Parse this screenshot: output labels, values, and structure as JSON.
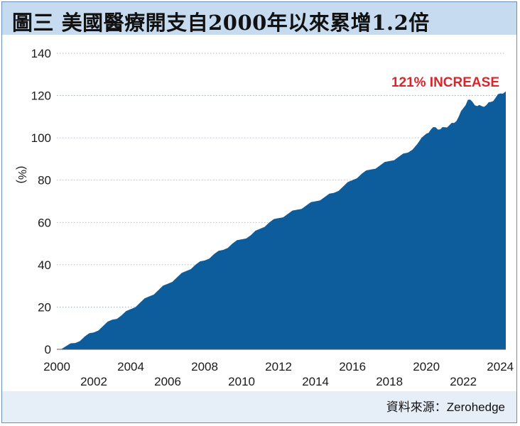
{
  "title": "圖三  美國醫療開支自2000年以來累增1.2倍",
  "source": "資料來源：Zerohedge",
  "colors": {
    "fill": "#0d5c9c",
    "title_bg": "#c6dbf0",
    "annotation": "#d8262d"
  },
  "chart_data": {
    "type": "area",
    "ylabel": "(%)",
    "ylim": [
      0,
      140
    ],
    "yticks": [
      "0",
      "20",
      "40",
      "60",
      "80",
      "100",
      "120",
      "140"
    ],
    "xlim": [
      2000,
      2024.3
    ],
    "xticks": [
      "2000",
      "2002",
      "2004",
      "2006",
      "2008",
      "2010",
      "2012",
      "2014",
      "2016",
      "2018",
      "2020",
      "2022",
      "2024"
    ],
    "annotation": "121% INCREASE",
    "grid": "horizontal dotted",
    "x": [
      2000.0,
      2000.5,
      2001.0,
      2001.5,
      2002.0,
      2002.5,
      2003.0,
      2003.5,
      2004.0,
      2004.5,
      2005.0,
      2005.5,
      2006.0,
      2006.5,
      2007.0,
      2007.5,
      2008.0,
      2008.5,
      2009.0,
      2009.5,
      2010.0,
      2010.5,
      2011.0,
      2011.5,
      2012.0,
      2012.5,
      2013.0,
      2013.5,
      2014.0,
      2014.5,
      2015.0,
      2015.5,
      2016.0,
      2016.5,
      2017.0,
      2017.5,
      2018.0,
      2018.5,
      2019.0,
      2019.5,
      2020.0,
      2020.25,
      2020.5,
      2020.75,
      2021.0,
      2021.25,
      2021.5,
      2021.75,
      2022.0,
      2022.25,
      2022.5,
      2022.75,
      2023.0,
      2023.25,
      2023.5,
      2023.75,
      2024.0,
      2024.3
    ],
    "values": [
      0,
      1.5,
      3,
      6,
      8,
      11,
      14,
      16,
      19,
      22,
      25,
      28,
      31,
      34,
      37,
      40,
      42,
      45,
      47,
      50,
      52,
      54,
      57,
      60,
      62,
      64,
      66,
      68,
      70,
      72,
      74,
      77,
      80,
      83,
      85,
      87,
      89,
      91,
      93,
      97,
      102,
      104,
      105,
      104,
      105,
      106,
      107,
      110,
      114,
      118,
      117,
      115,
      115,
      115.5,
      117,
      119,
      121,
      122
    ]
  }
}
